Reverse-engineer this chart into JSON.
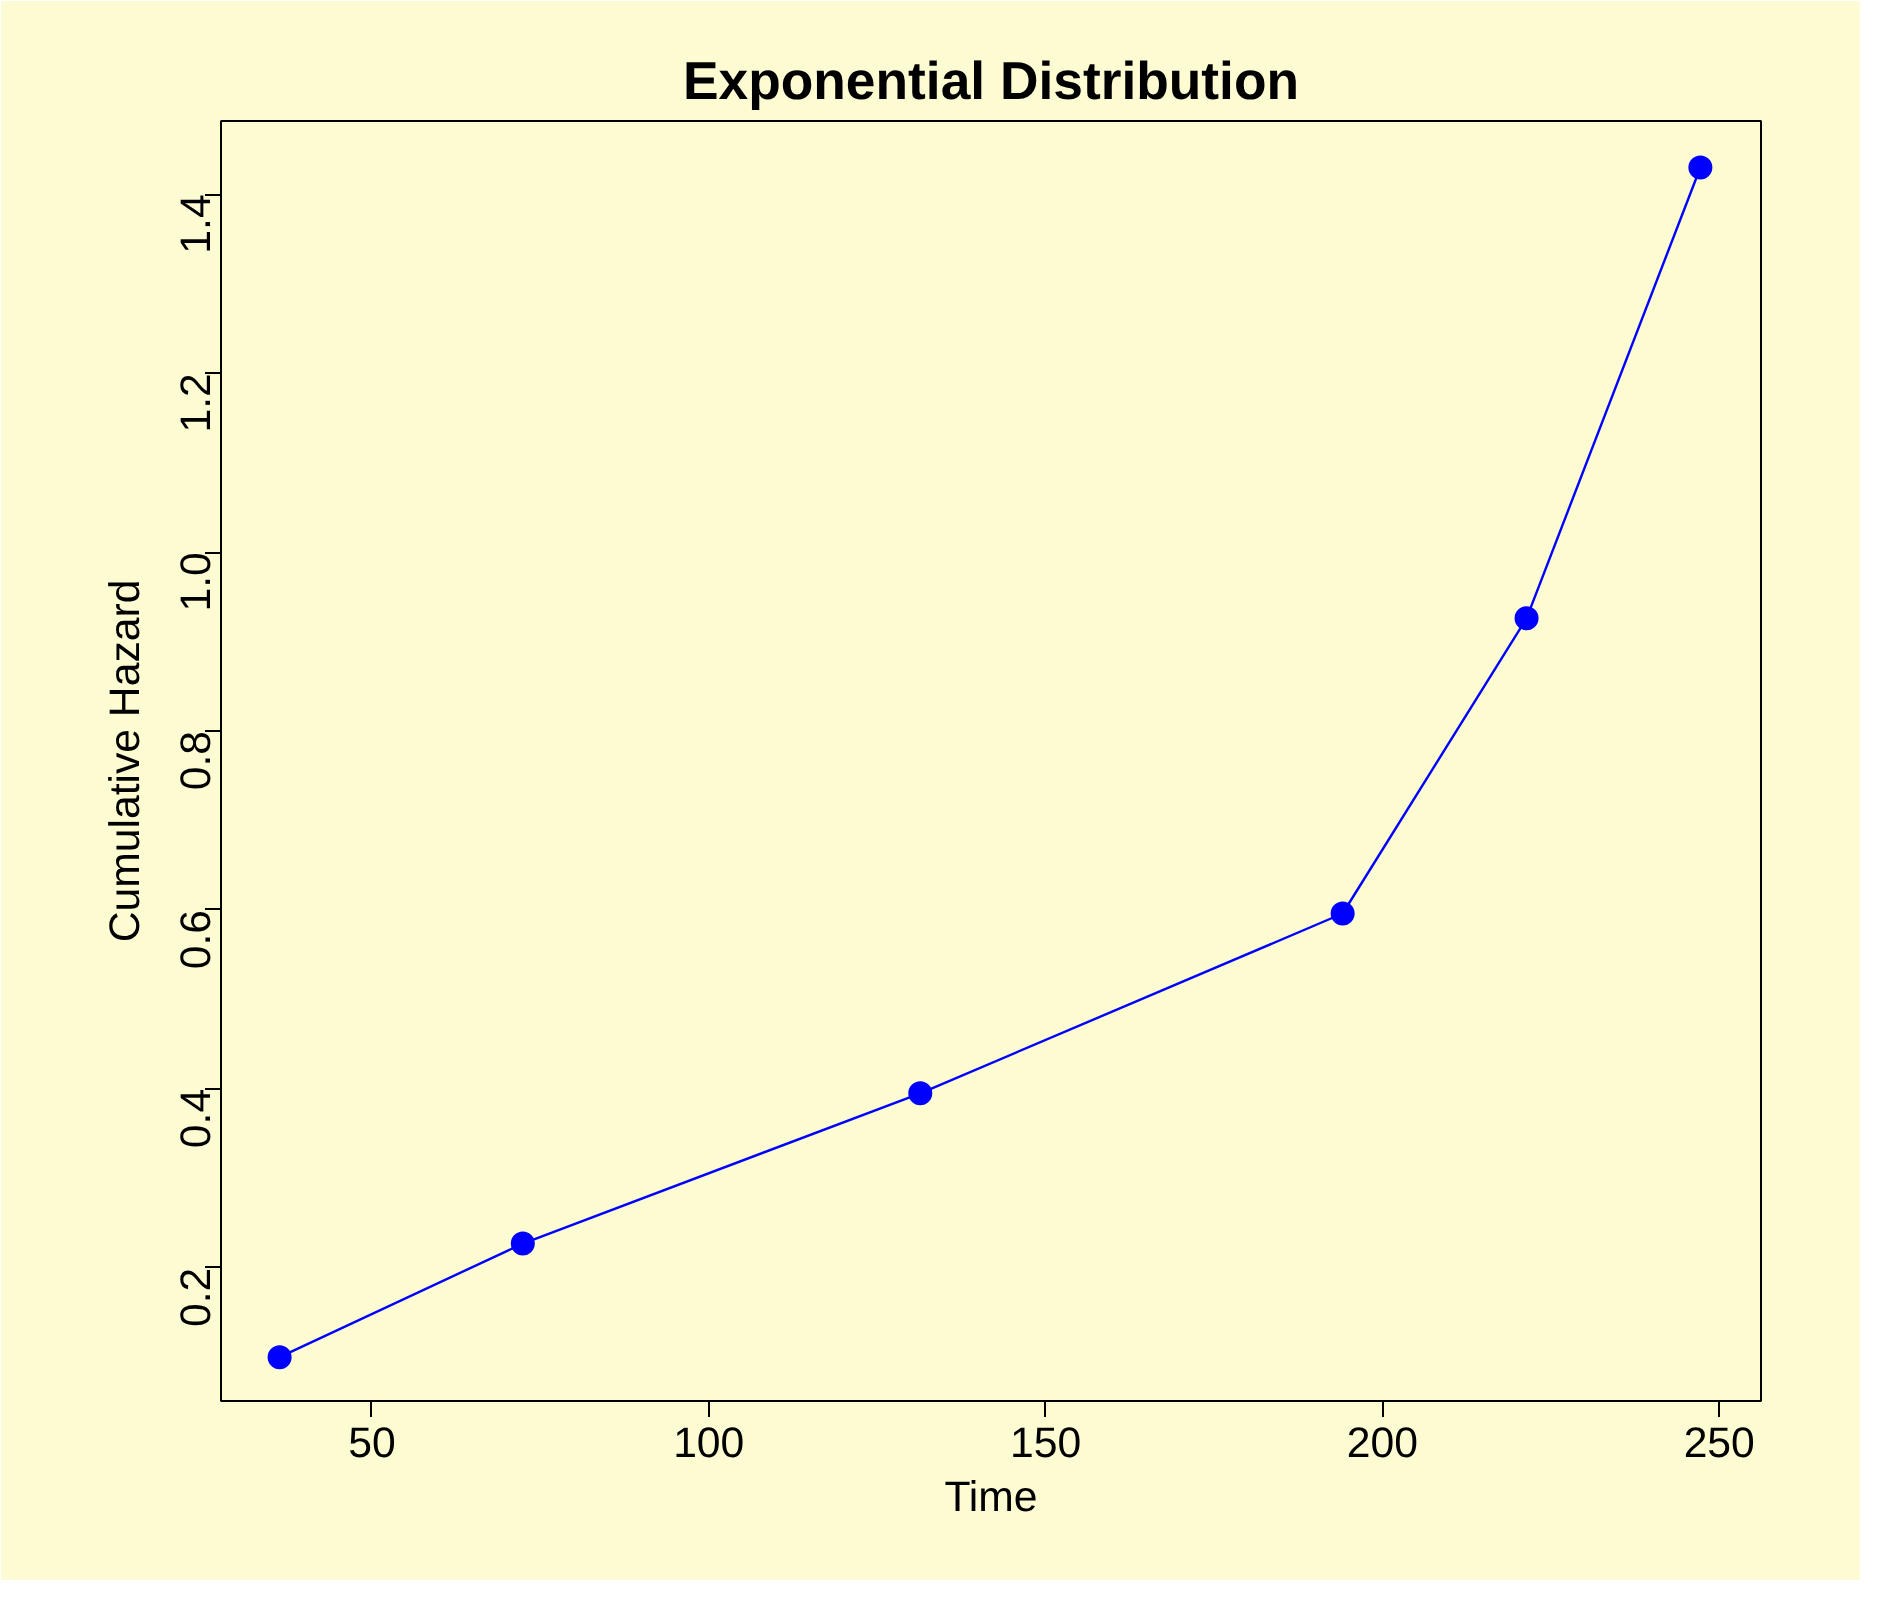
{
  "chart_data": {
    "type": "line",
    "title": "Exponential Distribution",
    "xlabel": "Time",
    "ylabel": "Cumulative Hazard",
    "x": [
      36.3,
      72.4,
      131.4,
      194.1,
      221.4,
      247.2
    ],
    "series": [
      {
        "color": "#0000ff",
        "values": [
          0.1,
          0.227,
          0.395,
          0.596,
          0.926,
          1.43
        ]
      }
    ],
    "xlim": [
      27.6,
      256.2
    ],
    "ylim": [
      0.051,
      1.482
    ],
    "xticks": [
      50,
      100,
      150,
      200,
      250
    ],
    "yticks": [
      0.2,
      {
        "value": 0.4,
        "label": "0.4"
      },
      {
        "value": 0.6,
        "label": "0.6"
      },
      {
        "value": 0.8,
        "label": "0.8"
      },
      {
        "value": 1.0,
        "label": "1.0"
      },
      {
        "value": 1.2,
        "label": "1.2"
      },
      {
        "value": 1.4,
        "label": "1.4"
      }
    ],
    "marker": "circle",
    "line_style": "solid",
    "grid": false
  }
}
